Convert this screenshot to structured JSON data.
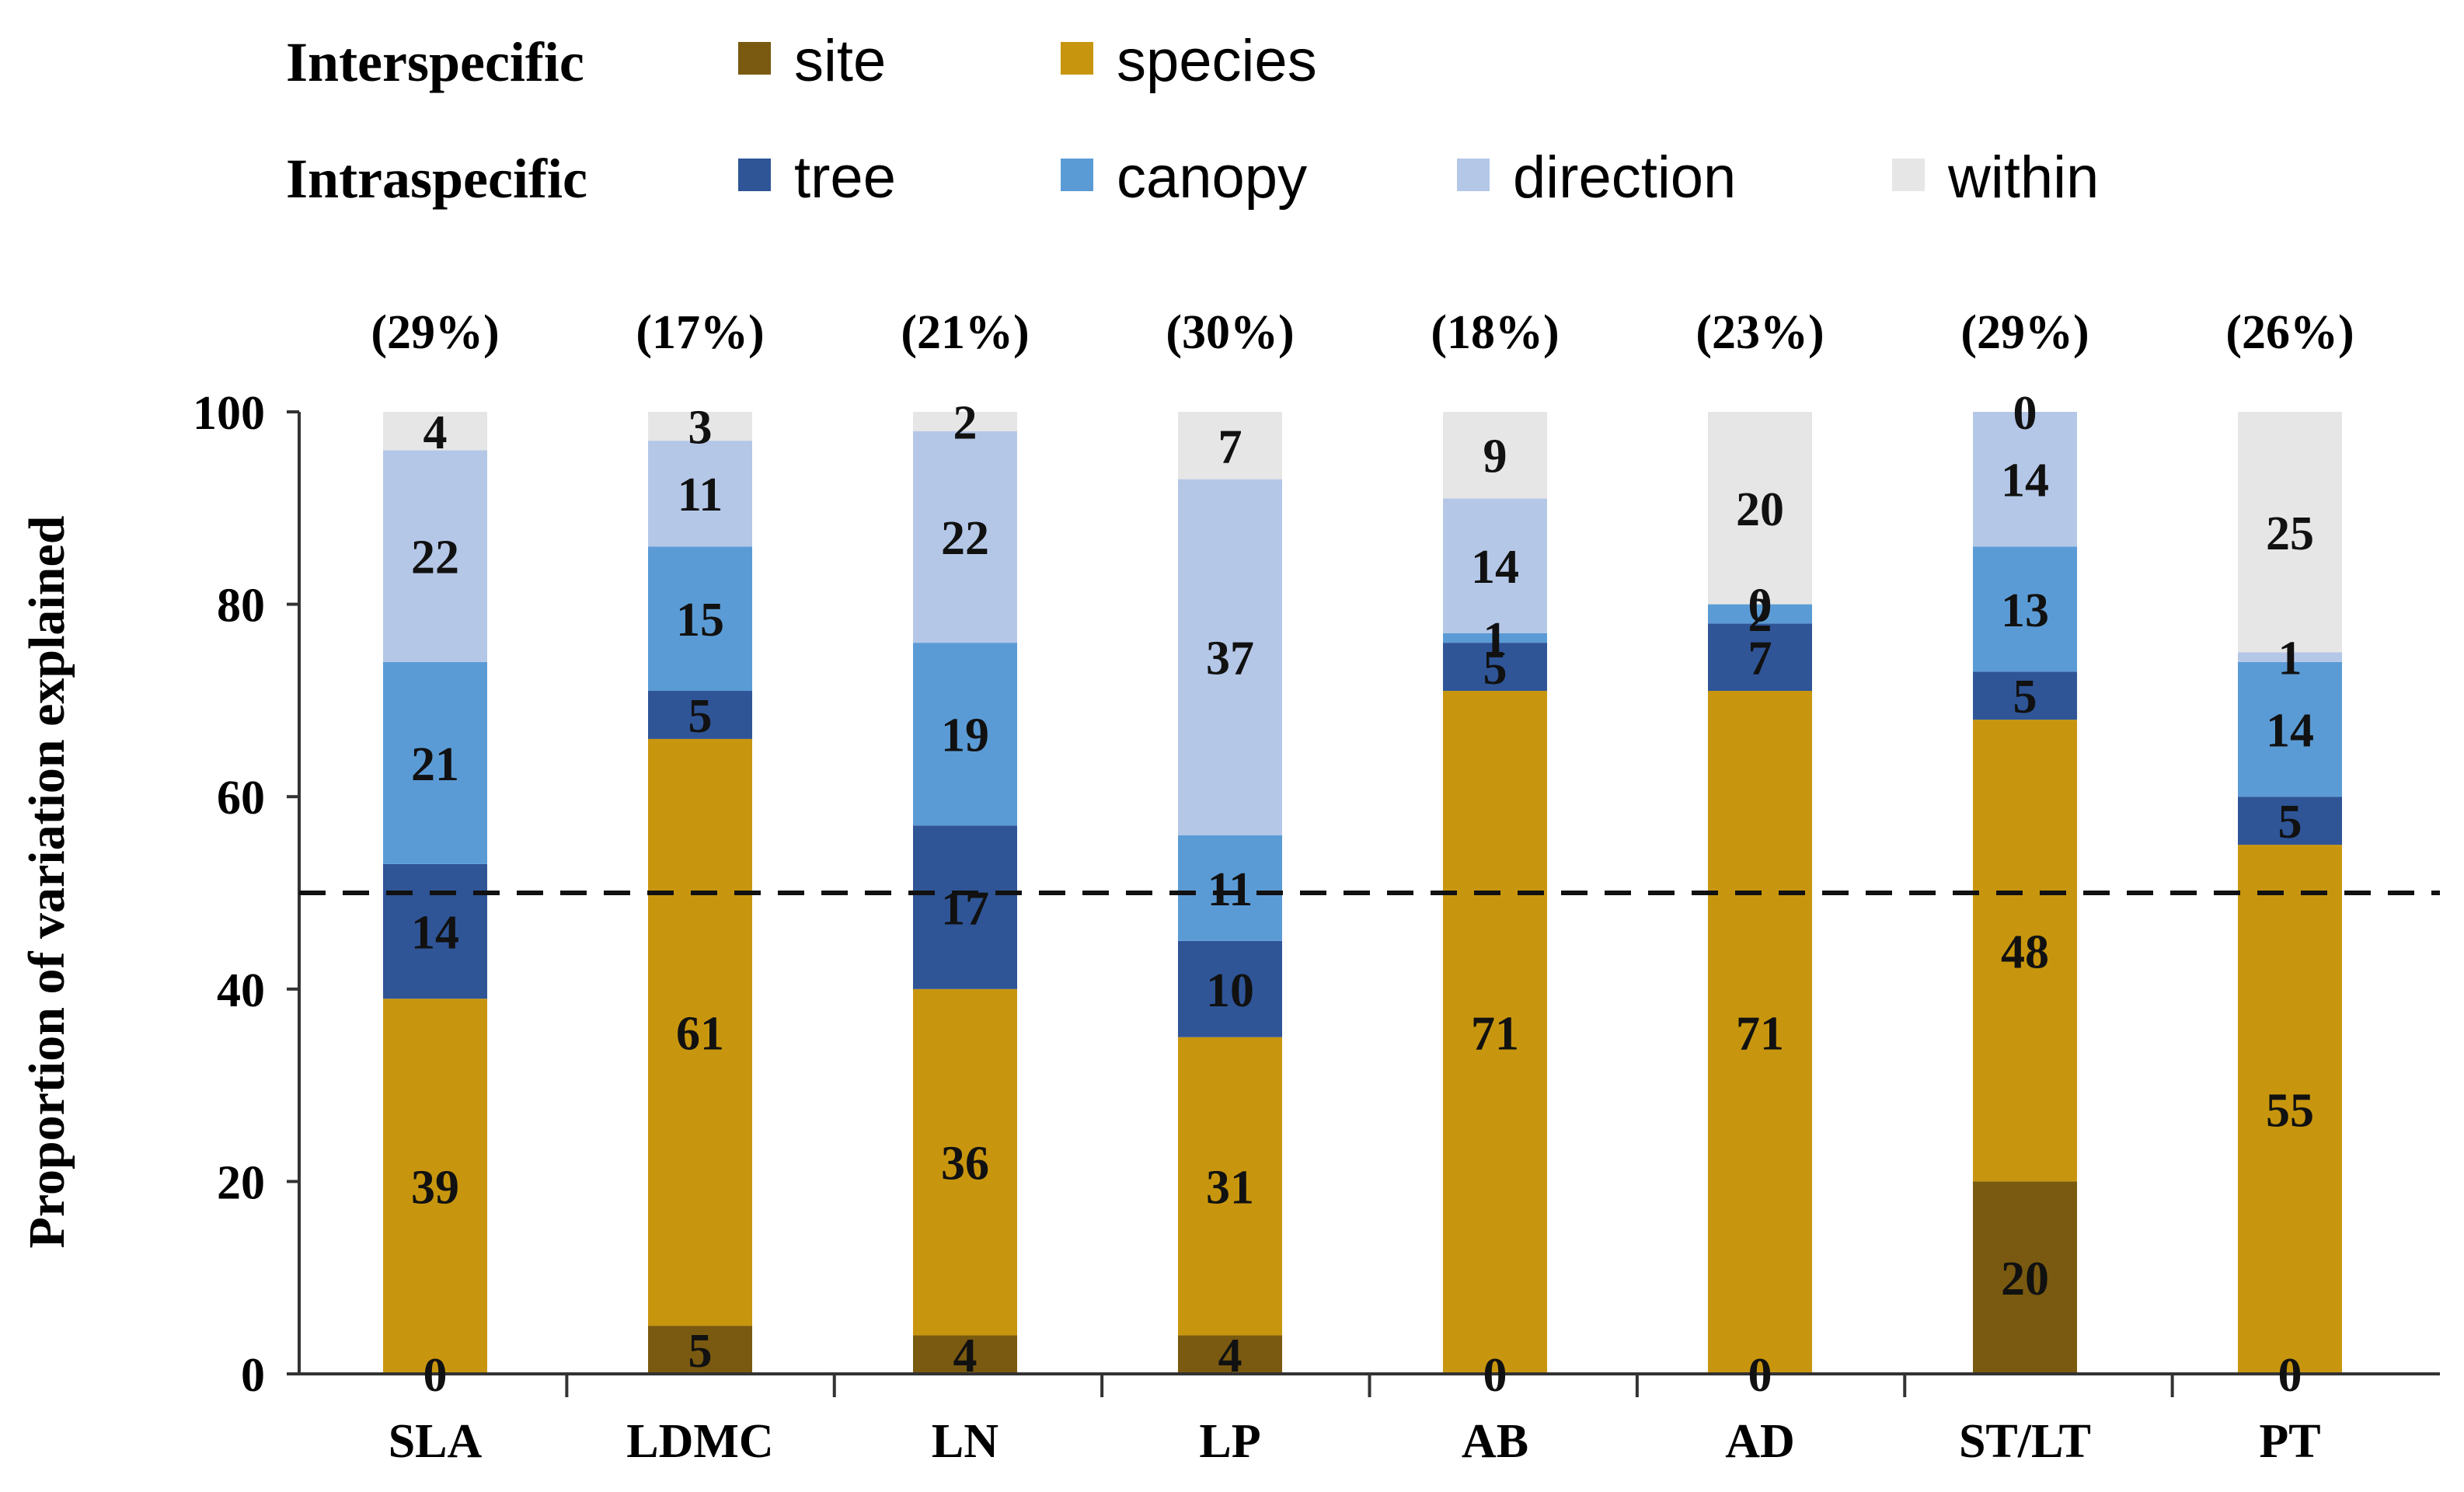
{
  "chart_data": {
    "type": "bar",
    "stacked": true,
    "ylabel": "Proportion of variation explained",
    "ylim": [
      0,
      100
    ],
    "yticks": [
      0,
      20,
      40,
      60,
      80,
      100
    ],
    "reference_line": 50,
    "categories": [
      "SLA",
      "LDMC",
      "LN",
      "LP",
      "AB",
      "AD",
      "ST/LT",
      "PT"
    ],
    "top_labels": [
      "(29%)",
      "(17%)",
      "(21%)",
      "(30%)",
      "(18%)",
      "(23%)",
      "(29%)",
      "(26%)"
    ],
    "legend": {
      "groups": [
        {
          "title": "Interspecific",
          "entries": [
            "site",
            "species"
          ]
        },
        {
          "title": "Intraspecific",
          "entries": [
            "tree",
            "canopy",
            "direction",
            "within"
          ]
        }
      ]
    },
    "series": [
      {
        "name": "site",
        "color": "#7a5a10",
        "values": [
          0,
          5,
          4,
          4,
          0,
          0,
          20,
          0
        ]
      },
      {
        "name": "species",
        "color": "#c8960e",
        "values": [
          39,
          61,
          36,
          31,
          71,
          71,
          48,
          55
        ]
      },
      {
        "name": "tree",
        "color": "#2f5597",
        "values": [
          14,
          5,
          17,
          10,
          5,
          7,
          5,
          5
        ]
      },
      {
        "name": "canopy",
        "color": "#5b9bd5",
        "values": [
          21,
          15,
          19,
          11,
          1,
          2,
          13,
          14
        ]
      },
      {
        "name": "direction",
        "color": "#b4c7e7",
        "values": [
          22,
          11,
          22,
          37,
          14,
          0,
          14,
          1
        ]
      },
      {
        "name": "within",
        "color": "#e6e6e6",
        "values": [
          4,
          3,
          2,
          7,
          9,
          20,
          0,
          25
        ]
      }
    ]
  }
}
